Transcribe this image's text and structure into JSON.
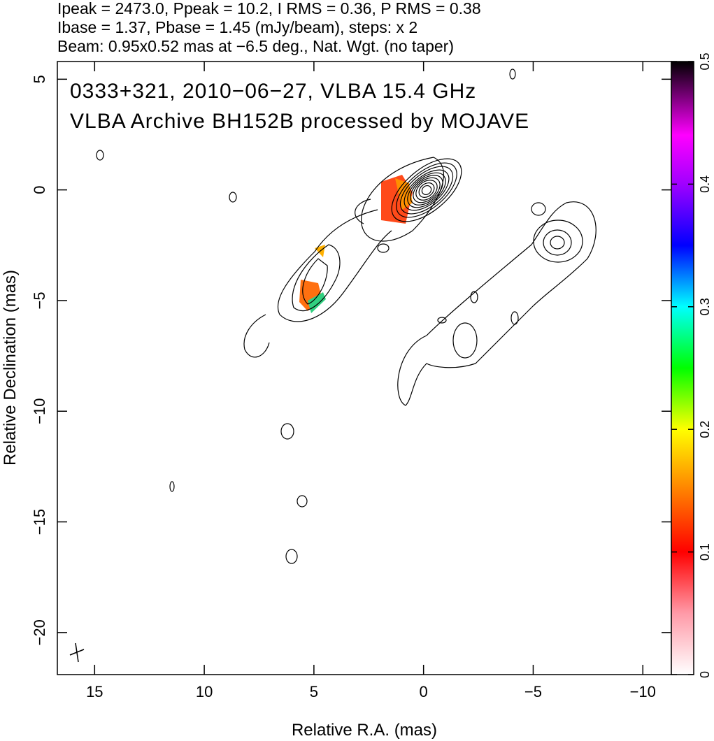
{
  "chart_data": {
    "type": "contour-map",
    "title_lines": [
      "Ipeak = 2473.0, Ppeak = 10.2, I RMS = 0.36, P RMS = 0.38",
      "Ibase = 1.37, Pbase = 1.45 (mJy/beam), steps: x 2",
      "Beam: 0.95x0.52 mas at −6.5 deg., Nat. Wgt. (no taper)"
    ],
    "annotations": [
      "0333+321, 2010−06−27, VLBA 15.4 GHz",
      "VLBA Archive BH152B processed by MOJAVE"
    ],
    "xlabel": "Relative R.A. (mas)",
    "ylabel": "Relative Declination (mas)",
    "xlim": [
      16.7,
      -11.3
    ],
    "ylim": [
      -21.9,
      5.8
    ],
    "xticks": [
      15,
      10,
      5,
      0,
      {
        "value": -5,
        "label": "−5"
      },
      {
        "value": -10,
        "label": "−10"
      }
    ],
    "yticks": [
      5,
      0,
      {
        "value": -5,
        "label": "−5"
      },
      {
        "value": -10,
        "label": "−10"
      },
      {
        "value": -15,
        "label": "−15"
      },
      {
        "value": -20,
        "label": "−20"
      }
    ],
    "clim": [
      0,
      0.5
    ],
    "cticks": [
      0,
      0.1,
      0.2,
      0.3,
      0.4,
      0.5
    ]
  }
}
